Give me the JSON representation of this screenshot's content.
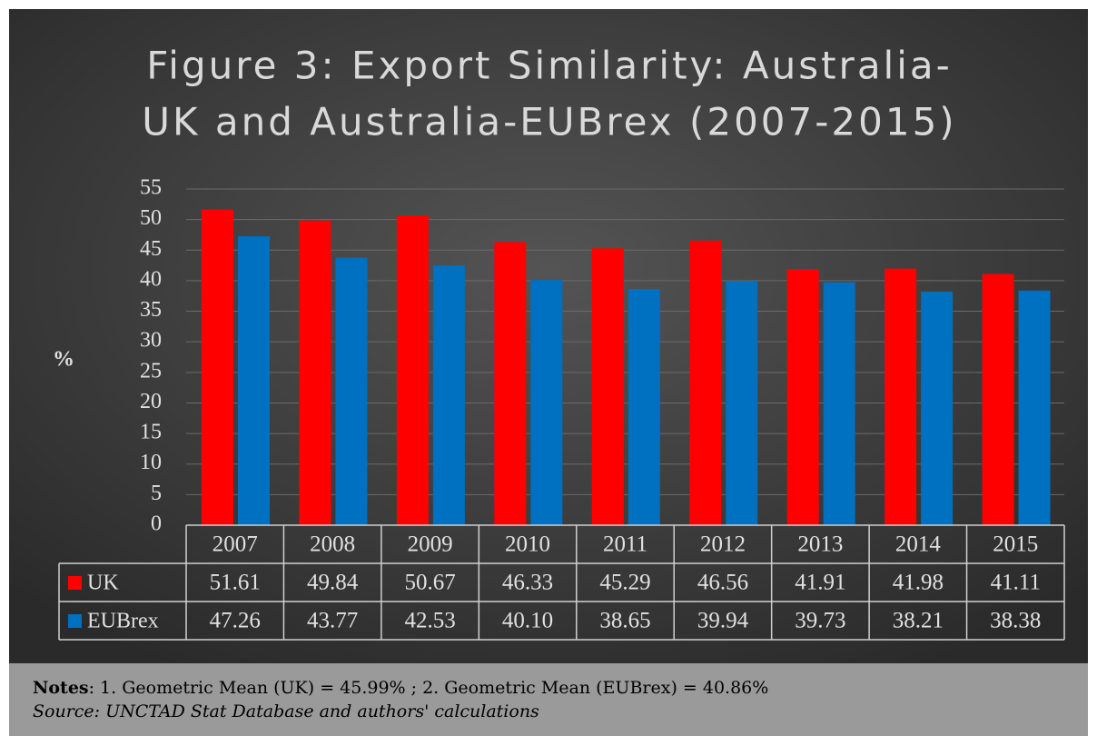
{
  "chart_data": {
    "type": "bar",
    "title": [
      "Figure 3: Export Similarity: Australia-",
      "UK and Australia-EUBrex (2007-2015)"
    ],
    "y_label": "%",
    "categories": [
      "2007",
      "2008",
      "2009",
      "2010",
      "2011",
      "2012",
      "2013",
      "2014",
      "2015"
    ],
    "series": [
      {
        "name": "UK",
        "color": "#ff0000",
        "values": [
          51.61,
          49.84,
          50.67,
          46.33,
          45.29,
          46.56,
          41.91,
          41.98,
          41.11
        ],
        "value_labels": [
          "51.61",
          "49.84",
          "50.67",
          "46.33",
          "45.29",
          "46.56",
          "41.91",
          "41.98",
          "41.11"
        ]
      },
      {
        "name": "EUBrex",
        "color": "#0070c0",
        "values": [
          47.26,
          43.77,
          42.53,
          40.1,
          38.65,
          39.94,
          39.73,
          38.21,
          38.38
        ],
        "value_labels": [
          "47.26",
          "43.77",
          "42.53",
          "40.10",
          "38.65",
          "39.94",
          "39.73",
          "38.21",
          "38.38"
        ]
      }
    ],
    "ylim": [
      0,
      55
    ],
    "yticks": [
      0,
      5,
      10,
      15,
      20,
      25,
      30,
      35,
      40,
      45,
      50,
      55
    ],
    "grid": true
  },
  "notes": {
    "label": "Notes",
    "text": ": 1. Geometric Mean (UK) = 45.99% ; 2. Geometric Mean (EUBrex) = 40.86%",
    "source": "Source: UNCTAD Stat Database and authors' calculations"
  }
}
